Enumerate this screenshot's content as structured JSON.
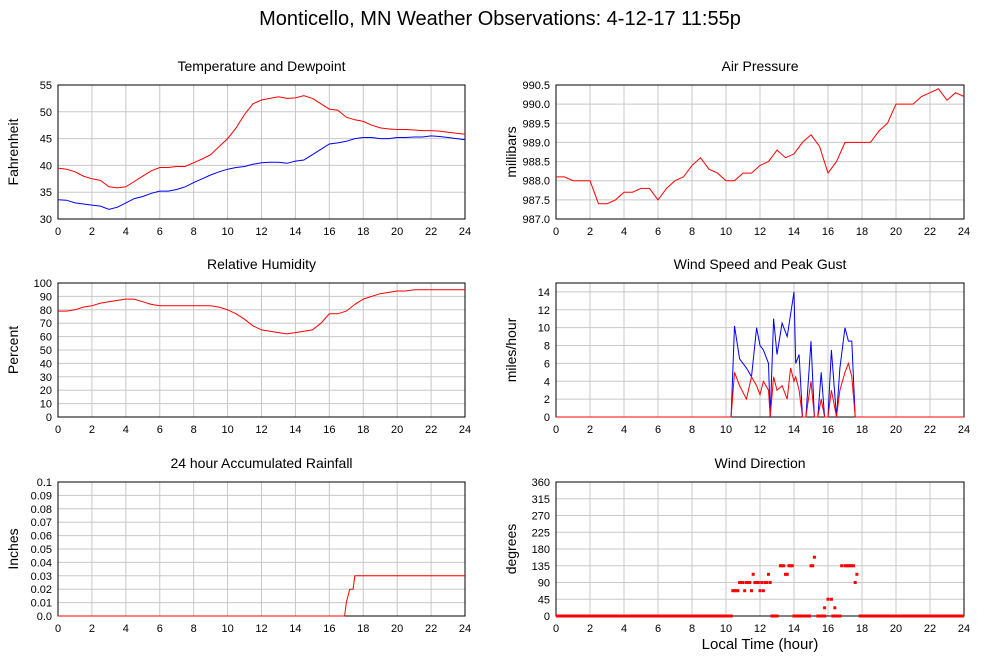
{
  "page_title": "Monticello, MN Weather Observations: 4-12-17 11:55p",
  "x_axis_label": "Local Time (hour)",
  "colors": {
    "red": "#ff0000",
    "blue": "#0000ff",
    "grid": "#c8c8c8",
    "axis": "#000000"
  },
  "chart_data": [
    {
      "id": "temp",
      "type": "line",
      "title": "Temperature and Dewpoint",
      "xlabel": "",
      "ylabel": "Fahrenheit",
      "xlim": [
        0,
        24
      ],
      "ylim": [
        30,
        55
      ],
      "xticks": [
        0,
        2,
        4,
        6,
        8,
        10,
        12,
        14,
        16,
        18,
        20,
        22,
        24
      ],
      "yticks": [
        30,
        35,
        40,
        45,
        50,
        55
      ],
      "ytick_labels": [
        "30",
        "35",
        "40",
        "45",
        "50",
        "55"
      ],
      "grid": true,
      "series": [
        {
          "color": "#ff0000",
          "x": [
            0,
            0.5,
            1,
            1.5,
            2,
            2.5,
            3,
            3.5,
            4,
            4.5,
            5,
            5.5,
            6,
            6.5,
            7,
            7.5,
            8,
            8.5,
            9,
            9.5,
            10,
            10.5,
            11,
            11.5,
            12,
            12.5,
            13,
            13.5,
            14,
            14.5,
            15,
            15.5,
            16,
            16.5,
            17,
            17.5,
            18,
            18.5,
            19,
            19.5,
            20,
            20.5,
            21,
            21.5,
            22,
            22.5,
            23,
            23.5,
            24
          ],
          "y": [
            39.5,
            39.3,
            38.8,
            38.0,
            37.5,
            37.2,
            36.0,
            35.8,
            36.0,
            37.0,
            38.0,
            39.0,
            39.6,
            39.6,
            39.8,
            39.8,
            40.5,
            41.2,
            42.0,
            43.5,
            45.0,
            47.0,
            49.5,
            51.5,
            52.2,
            52.5,
            52.8,
            52.5,
            52.6,
            53.0,
            52.5,
            51.5,
            50.5,
            50.3,
            49.0,
            48.5,
            48.2,
            47.5,
            47.0,
            46.8,
            46.7,
            46.7,
            46.6,
            46.5,
            46.5,
            46.4,
            46.2,
            46.0,
            45.8
          ]
        },
        {
          "color": "#0000ff",
          "x": [
            0,
            0.5,
            1,
            1.5,
            2,
            2.5,
            3,
            3.5,
            4,
            4.5,
            5,
            5.5,
            6,
            6.5,
            7,
            7.5,
            8,
            8.5,
            9,
            9.5,
            10,
            10.5,
            11,
            11.5,
            12,
            12.5,
            13,
            13.5,
            14,
            14.5,
            15,
            15.5,
            16,
            16.5,
            17,
            17.5,
            18,
            18.5,
            19,
            19.5,
            20,
            20.5,
            21,
            21.5,
            22,
            22.5,
            23,
            23.5,
            24
          ],
          "y": [
            33.6,
            33.5,
            33.0,
            32.8,
            32.6,
            32.4,
            31.8,
            32.2,
            33.0,
            33.8,
            34.2,
            34.8,
            35.2,
            35.2,
            35.5,
            36.0,
            36.8,
            37.5,
            38.2,
            38.8,
            39.3,
            39.6,
            39.8,
            40.2,
            40.5,
            40.6,
            40.6,
            40.4,
            40.8,
            41.0,
            42.0,
            43.0,
            44.0,
            44.2,
            44.5,
            45.0,
            45.2,
            45.2,
            45.0,
            45.0,
            45.2,
            45.2,
            45.3,
            45.3,
            45.5,
            45.4,
            45.2,
            45.0,
            44.8
          ]
        }
      ]
    },
    {
      "id": "pressure",
      "type": "line",
      "title": "Air Pressure",
      "xlabel": "",
      "ylabel": "millibars",
      "xlim": [
        0,
        24
      ],
      "ylim": [
        987.0,
        990.5
      ],
      "xticks": [
        0,
        2,
        4,
        6,
        8,
        10,
        12,
        14,
        16,
        18,
        20,
        22,
        24
      ],
      "yticks": [
        987.0,
        987.5,
        988.0,
        988.5,
        989.0,
        989.5,
        990.0,
        990.5
      ],
      "ytick_labels": [
        "987.0",
        "987.5",
        "988.0",
        "988.5",
        "989.0",
        "989.5",
        "990.0",
        "990.5"
      ],
      "grid": true,
      "series": [
        {
          "color": "#ff0000",
          "x": [
            0,
            0.5,
            1,
            1.5,
            2,
            2.5,
            3,
            3.5,
            4,
            4.5,
            5,
            5.5,
            6,
            6.5,
            7,
            7.5,
            8,
            8.5,
            9,
            9.5,
            10,
            10.5,
            11,
            11.5,
            12,
            12.5,
            13,
            13.5,
            14,
            14.5,
            15,
            15.5,
            16,
            16.5,
            17,
            17.5,
            18,
            18.5,
            19,
            19.5,
            20,
            20.5,
            21,
            21.5,
            22,
            22.5,
            23,
            23.5,
            24
          ],
          "y": [
            988.1,
            988.1,
            988.0,
            988.0,
            988.0,
            987.4,
            987.4,
            987.5,
            987.7,
            987.7,
            987.8,
            987.8,
            987.5,
            987.8,
            988.0,
            988.1,
            988.4,
            988.6,
            988.3,
            988.2,
            988.0,
            988.0,
            988.2,
            988.2,
            988.4,
            988.5,
            988.8,
            988.6,
            988.7,
            989.0,
            989.2,
            988.9,
            988.2,
            988.5,
            989.0,
            989.0,
            989.0,
            989.0,
            989.3,
            989.5,
            990.0,
            990.0,
            990.0,
            990.2,
            990.3,
            990.4,
            990.1,
            990.3,
            990.2
          ]
        }
      ]
    },
    {
      "id": "humidity",
      "type": "line",
      "title": "Relative Humidity",
      "xlabel": "",
      "ylabel": "Percent",
      "xlim": [
        0,
        24
      ],
      "ylim": [
        0,
        100
      ],
      "xticks": [
        0,
        2,
        4,
        6,
        8,
        10,
        12,
        14,
        16,
        18,
        20,
        22,
        24
      ],
      "yticks": [
        0,
        10,
        20,
        30,
        40,
        50,
        60,
        70,
        80,
        90,
        100
      ],
      "ytick_labels": [
        "0",
        "10",
        "20",
        "30",
        "40",
        "50",
        "60",
        "70",
        "80",
        "90",
        "100"
      ],
      "grid": true,
      "series": [
        {
          "color": "#ff0000",
          "x": [
            0,
            0.5,
            1,
            1.5,
            2,
            2.5,
            3,
            3.5,
            4,
            4.5,
            5,
            5.5,
            6,
            6.5,
            7,
            7.5,
            8,
            8.5,
            9,
            9.5,
            10,
            10.5,
            11,
            11.5,
            12,
            12.5,
            13,
            13.5,
            14,
            14.5,
            15,
            15.5,
            16,
            16.5,
            17,
            17.5,
            18,
            18.5,
            19,
            19.5,
            20,
            20.5,
            21,
            21.5,
            22,
            22.5,
            23,
            23.5,
            24
          ],
          "y": [
            79,
            79,
            80,
            82,
            83,
            85,
            86,
            87,
            88,
            88,
            86,
            84,
            83,
            83,
            83,
            83,
            83,
            83,
            83,
            82,
            80,
            77,
            73,
            68,
            65,
            64,
            63,
            62,
            63,
            64,
            65,
            70,
            77,
            77,
            79,
            84,
            88,
            90,
            92,
            93,
            94,
            94,
            95,
            95,
            95,
            95,
            95,
            95,
            95
          ]
        }
      ]
    },
    {
      "id": "wind",
      "type": "line",
      "title": "Wind Speed and Peak Gust",
      "xlabel": "",
      "ylabel": "miles/hour",
      "xlim": [
        0,
        24
      ],
      "ylim": [
        0,
        15
      ],
      "xticks": [
        0,
        2,
        4,
        6,
        8,
        10,
        12,
        14,
        16,
        18,
        20,
        22,
        24
      ],
      "yticks": [
        0,
        2,
        4,
        6,
        8,
        10,
        12,
        14
      ],
      "ytick_labels": [
        "0",
        "2",
        "4",
        "6",
        "8",
        "10",
        "12",
        "14"
      ],
      "grid": true,
      "series": [
        {
          "color": "#0000ff",
          "x": [
            0,
            10.3,
            10.5,
            10.8,
            11.2,
            11.5,
            11.8,
            12.0,
            12.2,
            12.5,
            12.6,
            12.8,
            13.0,
            13.3,
            13.6,
            13.8,
            14.0,
            14.1,
            14.3,
            14.5,
            14.7,
            15.0,
            15.2,
            15.4,
            15.6,
            15.8,
            16.0,
            16.2,
            16.5,
            16.7,
            17.0,
            17.2,
            17.4,
            17.6,
            24
          ],
          "y": [
            0,
            0,
            10.2,
            6.5,
            5.5,
            4.5,
            10.0,
            8.0,
            7.5,
            6.0,
            0,
            11.0,
            7.0,
            10.5,
            9.0,
            11.5,
            14.0,
            6.0,
            7.0,
            0,
            0,
            8.5,
            0,
            0,
            5.0,
            0,
            0,
            7.5,
            0,
            5.5,
            10.0,
            8.5,
            8.5,
            0,
            0
          ]
        },
        {
          "color": "#ff0000",
          "x": [
            0,
            10.3,
            10.5,
            10.8,
            11.2,
            11.5,
            11.8,
            12.0,
            12.2,
            12.5,
            12.6,
            12.8,
            13.0,
            13.3,
            13.6,
            13.8,
            14.0,
            14.1,
            14.3,
            14.5,
            14.7,
            15.0,
            15.2,
            15.4,
            15.6,
            15.8,
            16.0,
            16.2,
            16.5,
            16.7,
            17.0,
            17.2,
            17.4,
            17.6,
            24
          ],
          "y": [
            0,
            0,
            5.0,
            3.5,
            2.0,
            4.5,
            3.5,
            2.5,
            4.0,
            3.0,
            0,
            4.5,
            3.0,
            3.5,
            2.0,
            5.5,
            4.0,
            4.5,
            3.0,
            0,
            0,
            4.0,
            0,
            0,
            2.0,
            0,
            0,
            3.0,
            0,
            3.0,
            5.0,
            6.0,
            4.5,
            0,
            0
          ]
        }
      ]
    },
    {
      "id": "rain",
      "type": "line",
      "title": "24 hour Accumulated Rainfall",
      "xlabel": "",
      "ylabel": "Inches",
      "xlim": [
        0,
        24
      ],
      "ylim": [
        0,
        0.1
      ],
      "xticks": [
        0,
        2,
        4,
        6,
        8,
        10,
        12,
        14,
        16,
        18,
        20,
        22,
        24
      ],
      "yticks": [
        0,
        0.01,
        0.02,
        0.03,
        0.04,
        0.05,
        0.06,
        0.07,
        0.08,
        0.09,
        0.1
      ],
      "ytick_labels": [
        "0.0",
        "0.01",
        "0.02",
        "0.03",
        "0.04",
        "0.05",
        "0.06",
        "0.07",
        "0.08",
        "0.09",
        "0.1"
      ],
      "grid": true,
      "series": [
        {
          "color": "#ff0000",
          "x": [
            0,
            16.9,
            17.0,
            17.2,
            17.4,
            17.5,
            24
          ],
          "y": [
            0,
            0,
            0.01,
            0.02,
            0.02,
            0.03,
            0.03
          ]
        }
      ]
    },
    {
      "id": "direction",
      "type": "scatter",
      "title": "Wind Direction",
      "xlabel": "",
      "ylabel": "degrees",
      "xlim": [
        0,
        24
      ],
      "ylim": [
        0,
        360
      ],
      "xticks": [
        0,
        2,
        4,
        6,
        8,
        10,
        12,
        14,
        16,
        18,
        20,
        22,
        24
      ],
      "yticks": [
        0,
        45,
        90,
        135,
        180,
        225,
        270,
        315,
        360
      ],
      "ytick_labels": [
        "0",
        "45",
        "90",
        "135",
        "180",
        "225",
        "270",
        "315",
        "360"
      ],
      "grid": true,
      "series": [
        {
          "color": "#ff0000",
          "x": [
            10.4,
            10.5,
            10.6,
            10.7,
            10.8,
            10.9,
            11.0,
            11.1,
            11.2,
            11.3,
            11.4,
            11.5,
            11.6,
            11.7,
            11.8,
            11.9,
            12.0,
            12.1,
            12.2,
            12.3,
            12.4,
            12.5,
            12.6,
            12.7,
            12.8,
            12.9,
            13.0,
            13.2,
            13.3,
            13.4,
            13.5,
            13.6,
            13.7,
            13.8,
            13.9,
            14.0,
            14.2,
            14.4,
            14.6,
            14.8,
            15.0,
            15.1,
            15.2,
            15.4,
            15.6,
            15.7,
            15.8,
            16.0,
            16.2,
            16.4,
            16.6,
            16.8,
            17.0,
            17.1,
            17.2,
            17.3,
            17.4,
            17.5,
            17.6,
            17.7
          ],
          "y": [
            68,
            68,
            68,
            68,
            90,
            90,
            90,
            68,
            90,
            90,
            90,
            68,
            112,
            90,
            90,
            90,
            68,
            90,
            68,
            90,
            90,
            112,
            90,
            0,
            0,
            0,
            0,
            135,
            135,
            135,
            112,
            112,
            135,
            135,
            135,
            0,
            0,
            0,
            0,
            0,
            135,
            135,
            158,
            0,
            0,
            0,
            22,
            45,
            45,
            22,
            0,
            135,
            135,
            135,
            135,
            135,
            135,
            135,
            90,
            112
          ]
        }
      ],
      "baseline_segments": [
        [
          0,
          10.4
        ],
        [
          12.7,
          13.1
        ],
        [
          14.0,
          15.0
        ],
        [
          15.4,
          15.9
        ],
        [
          16.2,
          16.8
        ],
        [
          17.8,
          24
        ]
      ]
    }
  ]
}
